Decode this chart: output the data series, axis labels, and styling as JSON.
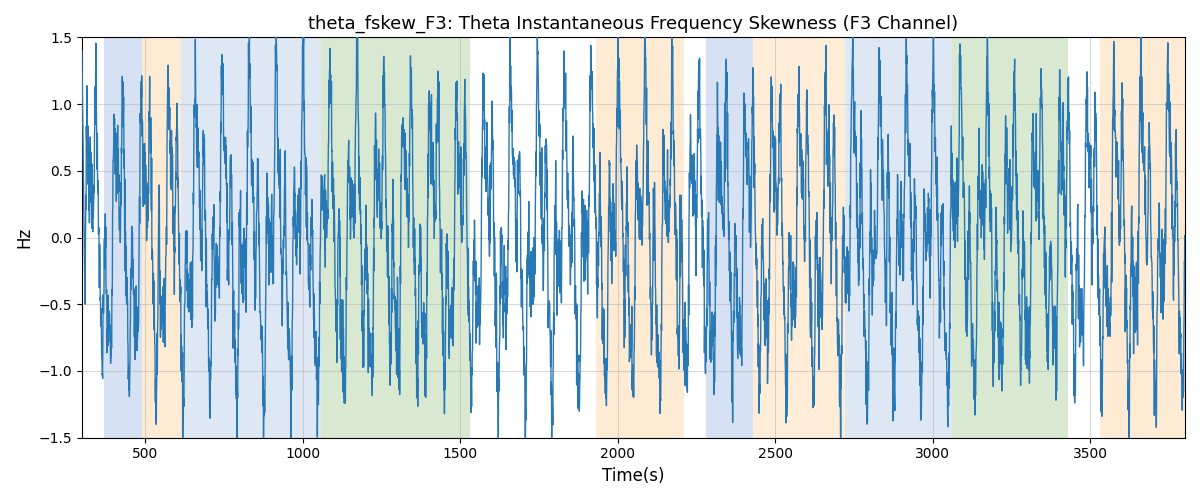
{
  "title": "theta_fskew_F3: Theta Instantaneous Frequency Skewness (F3 Channel)",
  "xlabel": "Time(s)",
  "ylabel": "Hz",
  "ylim": [
    -1.5,
    1.5
  ],
  "xlim": [
    300,
    3800
  ],
  "line_color": "#2878b5",
  "line_width": 1.0,
  "grid_color": "#b0b0b0",
  "grid_alpha": 0.5,
  "background_color": "#ffffff",
  "bands": [
    {
      "xmin": 370,
      "xmax": 490,
      "color": "#aec6e8",
      "alpha": 0.5
    },
    {
      "xmin": 490,
      "xmax": 615,
      "color": "#ffd9a8",
      "alpha": 0.5
    },
    {
      "xmin": 615,
      "xmax": 1060,
      "color": "#aec6e8",
      "alpha": 0.4
    },
    {
      "xmin": 1060,
      "xmax": 1530,
      "color": "#b5d4a5",
      "alpha": 0.5
    },
    {
      "xmin": 1930,
      "xmax": 2210,
      "color": "#ffd9a8",
      "alpha": 0.5
    },
    {
      "xmin": 2280,
      "xmax": 2430,
      "color": "#aec6e8",
      "alpha": 0.5
    },
    {
      "xmin": 2430,
      "xmax": 2720,
      "color": "#ffd9a8",
      "alpha": 0.45
    },
    {
      "xmin": 2720,
      "xmax": 3060,
      "color": "#aec6e8",
      "alpha": 0.4
    },
    {
      "xmin": 3060,
      "xmax": 3430,
      "color": "#b5d4a5",
      "alpha": 0.5
    },
    {
      "xmin": 3530,
      "xmax": 3800,
      "color": "#ffd9a8",
      "alpha": 0.5
    }
  ],
  "t_start": 300,
  "t_end": 3800,
  "n_points": 5000,
  "seed": 7
}
